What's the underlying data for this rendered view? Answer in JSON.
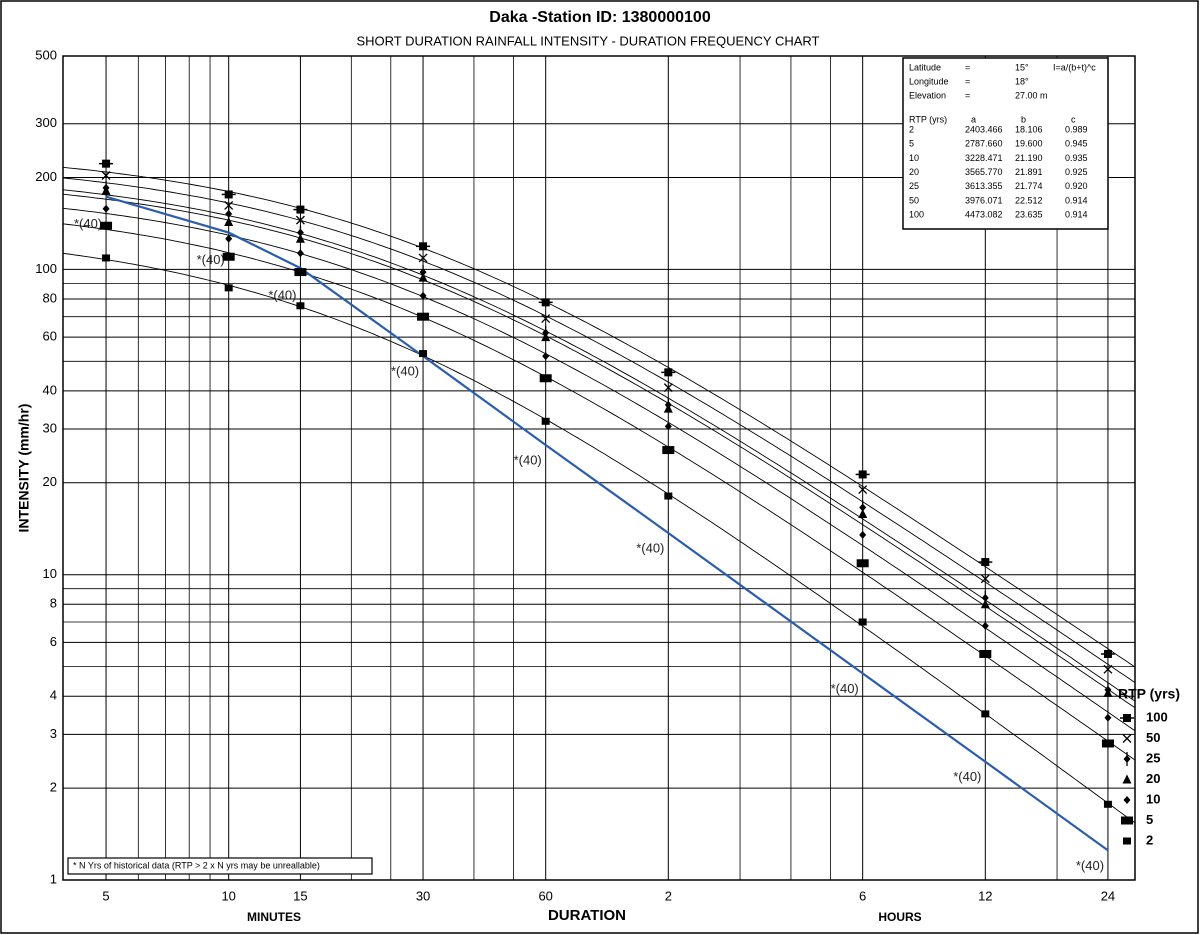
{
  "chart_data": {
    "type": "idf",
    "title": "Daka -Station ID: 1380000100",
    "subtitle": "SHORT DURATION RAINFALL INTENSITY - DURATION FREQUENCY CHART",
    "y_label": "INTENSITY (mm/hr)",
    "x_label": "DURATION",
    "x_unit_labels": [
      "MINUTES",
      "HOURS"
    ],
    "log_x": true,
    "log_y": true,
    "grid": true,
    "xlim": [
      3.92,
      1678
    ],
    "ylim": [
      1,
      500
    ],
    "xticks": [
      5,
      10,
      15,
      30,
      60,
      {
        "value": 120,
        "label": "2"
      },
      {
        "value": 360,
        "label": "6"
      },
      {
        "value": 720,
        "label": "12"
      },
      {
        "value": 1440,
        "label": "24"
      }
    ],
    "yticks": [
      1,
      2,
      3,
      4,
      6,
      8,
      10,
      20,
      30,
      40,
      60,
      80,
      100,
      200,
      300,
      500
    ],
    "x_minor_grid": [
      6,
      7,
      8,
      9,
      20,
      25,
      40,
      50,
      180,
      240,
      300,
      1080
    ],
    "y_minor_grid": [
      5,
      7,
      9,
      50,
      70,
      90
    ],
    "x": [
      5,
      10,
      15,
      30,
      60,
      120,
      360,
      720,
      1440
    ],
    "legend_title": "RTP (yrs)",
    "legend_position": "right",
    "series": [
      {
        "name": "100",
        "marker": "square-tick",
        "color": "#000",
        "values": [
          222,
          176,
          157,
          119,
          78,
          46,
          21.3,
          11,
          5.5
        ],
        "params": {
          "a": {
            "value": 4473.082,
            "label": "4473.082"
          },
          "b": {
            "value": 23.635,
            "label": "23.635"
          },
          "c": {
            "value": 0.914,
            "label": "0.914"
          }
        }
      },
      {
        "name": "50",
        "marker": "x",
        "color": "#000",
        "values": [
          203,
          162,
          145,
          109,
          69,
          41,
          19,
          9.7,
          4.9
        ],
        "params": {
          "a": {
            "value": 3976.071,
            "label": "3976.071"
          },
          "b": {
            "value": 22.512,
            "label": "22.512"
          },
          "c": {
            "value": 0.914,
            "label": "0.914"
          }
        }
      },
      {
        "name": "25",
        "marker": "diamond-bar",
        "color": "#000",
        "values": [
          185,
          152,
          132,
          98,
          62,
          36,
          16.6,
          8.4,
          4.2
        ],
        "params": {
          "a": {
            "value": 3613.355,
            "label": "3613.355"
          },
          "b": {
            "value": 21.774,
            "label": "21.774"
          },
          "c": {
            "value": 0.92,
            "label": "0.920"
          }
        }
      },
      {
        "name": "20",
        "marker": "triangle",
        "color": "#000",
        "values": [
          181,
          143,
          126,
          94,
          60,
          35,
          15.8,
          8.0,
          4.1
        ],
        "params": {
          "a": {
            "value": 3565.77,
            "label": "3565.770"
          },
          "b": {
            "value": 21.891,
            "label": "21.891"
          },
          "c": {
            "value": 0.925,
            "label": "0.925"
          }
        }
      },
      {
        "name": "10",
        "marker": "diamond",
        "color": "#000",
        "values": [
          158,
          126,
          113,
          82,
          52,
          30.6,
          13.5,
          6.8,
          3.4
        ],
        "params": {
          "a": {
            "value": 3228.471,
            "label": "3228.471"
          },
          "b": {
            "value": 21.19,
            "label": "21.190"
          },
          "c": {
            "value": 0.935,
            "label": "0.935"
          }
        }
      },
      {
        "name": "5",
        "marker": "square",
        "color": "#000",
        "values": [
          139,
          110,
          98,
          70,
          44,
          25.6,
          10.9,
          5.5,
          2.8
        ],
        "params": {
          "a": {
            "value": 2787.66,
            "label": "2787.660"
          },
          "b": {
            "value": 19.6,
            "label": "19.600"
          },
          "c": {
            "value": 0.945,
            "label": "0.945"
          }
        }
      },
      {
        "name": "2",
        "marker": "small-square",
        "color": "#000",
        "values": [
          109,
          87,
          76,
          53,
          31.8,
          18.1,
          7.0,
          3.5,
          1.77
        ],
        "params": {
          "a": {
            "value": 2403.466,
            "label": "2403.466"
          },
          "b": {
            "value": 18.106,
            "label": "18.106"
          },
          "c": {
            "value": 0.989,
            "label": "0.989"
          }
        }
      }
    ],
    "envelope": {
      "color": "#2a5db0",
      "values": [
        173,
        132,
        101,
        52,
        26.6,
        13.7,
        4.75,
        2.44,
        1.25
      ],
      "labels": [
        "*(40)",
        "*(40)",
        "*(40)",
        "*(40)",
        "*(40)",
        "*(40)",
        "*(40)",
        "*(40)",
        "*(40)"
      ]
    },
    "station_info": [
      {
        "label": "Latitude",
        "sep": "=",
        "value": "15°"
      },
      {
        "label": "Longitude",
        "sep": "=",
        "value": "18°"
      },
      {
        "label": "Elevation",
        "sep": "=",
        "value": "27.00 m"
      }
    ],
    "formula": "I=a/(b+t)^c",
    "param_headers": [
      "RTP (yrs)",
      "a",
      "b",
      "c"
    ],
    "note": "* N Yrs of historical data (RTP > 2 x N yrs may be unreallable)"
  }
}
